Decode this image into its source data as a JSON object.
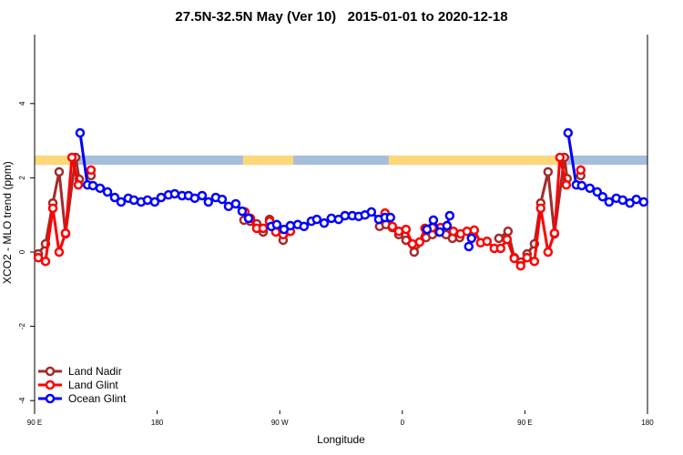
{
  "chart_data": {
    "type": "line",
    "title": "27.5N-32.5N May (Ver 10)   2015-01-01 to 2020-12-18",
    "xlabel": "Longitude",
    "ylabel": "XCO2 - MLO trend (ppm)",
    "xlim": [
      90,
      540
    ],
    "ylim": [
      -4.1,
      5.6
    ],
    "xticks": [
      90,
      180,
      270,
      360,
      450,
      540
    ],
    "xtick_labels": [
      "90 E",
      "180",
      "90 W",
      "0",
      "90 E",
      "180"
    ],
    "yticks": [
      -4,
      -2,
      0,
      2,
      4
    ],
    "ytick_labels": [
      "-4",
      "-2",
      "0",
      "2",
      "4"
    ],
    "legend_position": "bottom-left",
    "map_band": {
      "y_range": [
        2.35,
        2.6
      ],
      "ocean_color": "#a7bedb",
      "land_color": "#fdd77a",
      "land_segments": [
        [
          90,
          120.5
        ],
        [
          243,
          280
        ],
        [
          350,
          481
        ]
      ]
    },
    "series": [
      {
        "name": "Land Nadir",
        "color": "#a52a2a",
        "points": [
          [
            92.7,
            -0.05
          ],
          [
            98.0,
            0.22
          ],
          [
            103.4,
            1.32
          ],
          [
            108.0,
            2.16
          ],
          [
            112.7,
            0.49
          ],
          [
            120.1,
            2.55
          ],
          [
            122.8,
            1.96
          ],
          null,
          [
            131.4,
            2.06
          ],
          null,
          [
            243.7,
            0.86
          ],
          [
            248.4,
            0.83
          ],
          [
            253.1,
            0.76
          ],
          [
            257.8,
            0.54
          ],
          [
            262.5,
            0.88
          ],
          [
            267.1,
            0.64
          ],
          [
            272.5,
            0.32
          ],
          [
            277.8,
            0.56
          ],
          null,
          [
            343.3,
            0.69
          ],
          [
            348.0,
            0.74
          ],
          [
            352.7,
            0.66
          ],
          [
            357.4,
            0.47
          ],
          [
            362.7,
            0.32
          ],
          [
            368.7,
            0.0
          ],
          [
            377.4,
            0.39
          ],
          [
            382.1,
            0.47
          ],
          [
            386.8,
            0.54
          ],
          [
            392.1,
            0.47
          ],
          [
            396.8,
            0.37
          ],
          [
            402.1,
            0.39
          ],
          null,
          [
            430.9,
            0.37
          ],
          [
            437.6,
            0.56
          ],
          [
            442.2,
            -0.15
          ],
          [
            446.9,
            -0.27
          ],
          [
            451.6,
            -0.05
          ],
          [
            457.0,
            0.22
          ],
          [
            461.6,
            1.32
          ],
          [
            467.0,
            2.16
          ],
          [
            471.7,
            0.49
          ],
          [
            479.0,
            2.55
          ],
          [
            481.0,
            1.98
          ],
          null,
          [
            491.0,
            2.06
          ]
        ]
      },
      {
        "name": "Land Glint",
        "color": "#ff0000",
        "points": [
          [
            92.7,
            -0.15
          ],
          [
            98.0,
            -0.25
          ],
          [
            103.4,
            1.18
          ],
          [
            108.0,
            0.0
          ],
          [
            112.7,
            0.51
          ],
          [
            117.4,
            2.55
          ],
          [
            122.1,
            1.81
          ],
          null,
          [
            131.4,
            2.21
          ],
          null,
          [
            244.4,
            1.08
          ],
          [
            248.4,
            0.91
          ],
          [
            253.1,
            0.64
          ],
          [
            257.8,
            0.64
          ],
          [
            262.5,
            0.83
          ],
          [
            267.1,
            0.54
          ],
          [
            272.5,
            0.47
          ],
          [
            277.8,
            0.56
          ],
          null,
          [
            347.3,
            1.05
          ],
          [
            352.7,
            0.69
          ],
          [
            357.4,
            0.56
          ],
          [
            362.7,
            0.61
          ],
          [
            367.4,
            0.22
          ],
          [
            372.7,
            0.27
          ],
          [
            376.7,
            0.64
          ],
          [
            382.1,
            0.66
          ],
          [
            388.1,
            0.66
          ],
          [
            392.8,
            0.71
          ],
          [
            397.5,
            0.56
          ],
          [
            402.8,
            0.49
          ],
          [
            407.5,
            0.56
          ],
          [
            412.8,
            0.59
          ],
          [
            417.5,
            0.25
          ],
          [
            422.2,
            0.29
          ],
          [
            427.5,
            0.1
          ],
          [
            432.2,
            0.1
          ],
          [
            436.9,
            0.34
          ],
          [
            442.2,
            -0.17
          ],
          [
            446.9,
            -0.37
          ],
          [
            451.6,
            -0.15
          ],
          [
            457.0,
            -0.25
          ],
          [
            461.6,
            1.18
          ],
          [
            467.0,
            0.0
          ],
          [
            471.7,
            0.51
          ],
          [
            475.7,
            2.55
          ],
          [
            480.4,
            1.81
          ],
          null,
          [
            491.0,
            2.21
          ]
        ]
      },
      {
        "name": "Ocean Glint",
        "color": "#0000ff",
        "points": [
          [
            123.4,
            3.21
          ],
          [
            128.8,
            1.81
          ],
          [
            132.8,
            1.79
          ],
          [
            138.1,
            1.72
          ],
          [
            143.5,
            1.62
          ],
          [
            148.8,
            1.47
          ],
          [
            153.5,
            1.35
          ],
          [
            158.8,
            1.45
          ],
          [
            162.9,
            1.4
          ],
          [
            168.2,
            1.35
          ],
          [
            172.9,
            1.4
          ],
          [
            178.2,
            1.35
          ],
          [
            182.9,
            1.47
          ],
          [
            188.3,
            1.54
          ],
          [
            192.9,
            1.57
          ],
          [
            198.3,
            1.52
          ],
          [
            203.0,
            1.52
          ],
          [
            207.6,
            1.45
          ],
          [
            213.0,
            1.52
          ],
          [
            217.6,
            1.35
          ],
          [
            223.0,
            1.47
          ],
          [
            227.7,
            1.42
          ],
          [
            232.4,
            1.23
          ],
          [
            237.7,
            1.3
          ],
          [
            242.4,
            1.1
          ],
          [
            247.1,
            0.91
          ],
          null,
          [
            263.8,
            0.69
          ],
          [
            267.8,
            0.74
          ],
          [
            273.1,
            0.61
          ],
          [
            277.8,
            0.71
          ],
          [
            283.2,
            0.74
          ],
          [
            287.8,
            0.69
          ],
          [
            293.2,
            0.83
          ],
          [
            297.2,
            0.88
          ],
          [
            302.6,
            0.78
          ],
          [
            307.9,
            0.91
          ],
          [
            313.2,
            0.88
          ],
          [
            317.9,
            0.98
          ],
          [
            323.3,
            0.98
          ],
          [
            328.0,
            0.96
          ],
          [
            332.6,
            1.0
          ],
          [
            337.3,
            1.08
          ],
          [
            342.7,
            0.88
          ],
          [
            347.3,
            0.93
          ],
          [
            351.3,
            0.93
          ],
          null,
          [
            378.1,
            0.61
          ],
          [
            382.8,
            0.86
          ],
          [
            387.5,
            0.54
          ],
          [
            392.8,
            0.71
          ],
          [
            394.8,
            0.98
          ],
          null,
          [
            408.8,
            0.15
          ],
          [
            410.8,
            0.37
          ],
          null,
          [
            481.7,
            3.21
          ],
          [
            487.7,
            1.81
          ],
          [
            491.7,
            1.79
          ],
          [
            497.7,
            1.72
          ],
          [
            503.1,
            1.62
          ],
          [
            507.1,
            1.49
          ],
          [
            511.8,
            1.35
          ],
          [
            517.1,
            1.45
          ],
          [
            521.8,
            1.4
          ],
          [
            527.1,
            1.32
          ],
          [
            531.8,
            1.42
          ],
          [
            537.2,
            1.35
          ]
        ]
      }
    ]
  }
}
